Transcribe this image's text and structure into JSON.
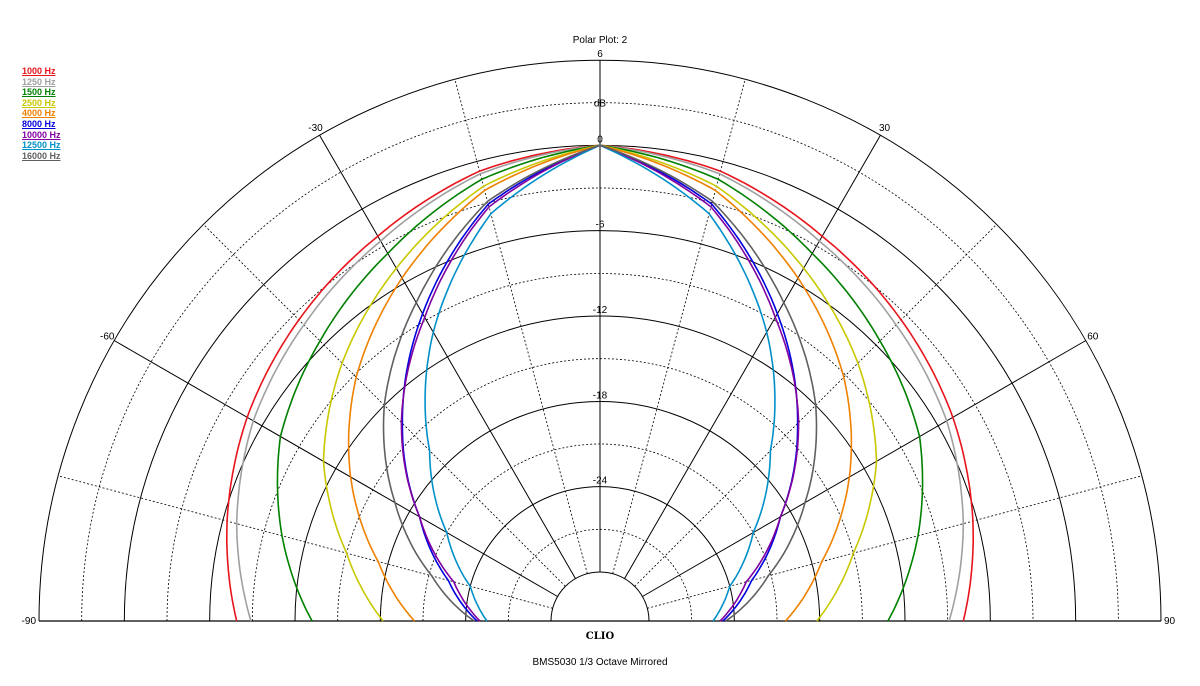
{
  "chart_data": {
    "type": "polar",
    "title": "Polar Plot: 2",
    "radial_unit": "dB",
    "radial_ticks": [
      6,
      0,
      -6,
      -12,
      -18,
      -24
    ],
    "radial_range": [
      -30,
      6
    ],
    "angle_ticks": [
      -90,
      -60,
      -30,
      30,
      60,
      90
    ],
    "angle_range": [
      -90,
      90
    ],
    "mirrored": true,
    "legend_position": "top-left",
    "series": [
      {
        "name": "1000 Hz",
        "color": "#e8141c",
        "angles": [
          0,
          15,
          30,
          45,
          60,
          75,
          90
        ],
        "values": [
          0,
          -0.7,
          -2.2,
          -3.5,
          -4.8,
          -6.3,
          -7.9
        ]
      },
      {
        "name": "1250 Hz",
        "color": "#a0a0a0",
        "angles": [
          0,
          15,
          30,
          45,
          60,
          75,
          90
        ],
        "values": [
          0,
          -0.9,
          -2.6,
          -4.0,
          -5.3,
          -7.0,
          -8.9
        ]
      },
      {
        "name": "1500 Hz",
        "color": "#008000",
        "angles": [
          0,
          15,
          30,
          45,
          60,
          75,
          90
        ],
        "values": [
          0,
          -1.3,
          -3.6,
          -5.6,
          -7.5,
          -10.3,
          -13.2
        ]
      },
      {
        "name": "2500 Hz",
        "color": "#c8c800",
        "angles": [
          0,
          15,
          30,
          45,
          60,
          75,
          90
        ],
        "values": [
          0,
          -1.8,
          -4.8,
          -7.8,
          -11.0,
          -15.0,
          -18.2
        ]
      },
      {
        "name": "4000 Hz",
        "color": "#f08000",
        "angles": [
          0,
          15,
          30,
          45,
          60,
          75,
          90
        ],
        "values": [
          0,
          -2.1,
          -5.6,
          -9.2,
          -13.2,
          -17.3,
          -20.4
        ]
      },
      {
        "name": "8000 Hz",
        "color": "#0000e0",
        "angles": [
          0,
          15,
          30,
          45,
          60,
          75,
          90
        ],
        "values": [
          0,
          -3.1,
          -8.5,
          -13.8,
          -18.8,
          -22.4,
          -24.8
        ]
      },
      {
        "name": "10000 Hz",
        "color": "#8000a0",
        "angles": [
          0,
          15,
          30,
          45,
          60,
          75,
          90
        ],
        "values": [
          0,
          -3.3,
          -8.8,
          -13.7,
          -18.8,
          -22.8,
          -25.0
        ]
      },
      {
        "name": "12500 Hz",
        "color": "#0090c8",
        "angles": [
          0,
          15,
          30,
          45,
          60,
          75,
          90
        ],
        "values": [
          0,
          -3.8,
          -10.0,
          -16.5,
          -21.0,
          -24.0,
          -25.5
        ]
      },
      {
        "name": "16000 Hz",
        "color": "#606060",
        "angles": [
          0,
          15,
          30,
          45,
          60,
          75,
          90
        ],
        "values": [
          0,
          -2.9,
          -7.6,
          -12.0,
          -16.8,
          -21.2,
          -24.6
        ]
      }
    ]
  },
  "footer": {
    "logo": "CLIO",
    "subtitle": "BMS5030   1/3 Octave   Mirrored"
  }
}
